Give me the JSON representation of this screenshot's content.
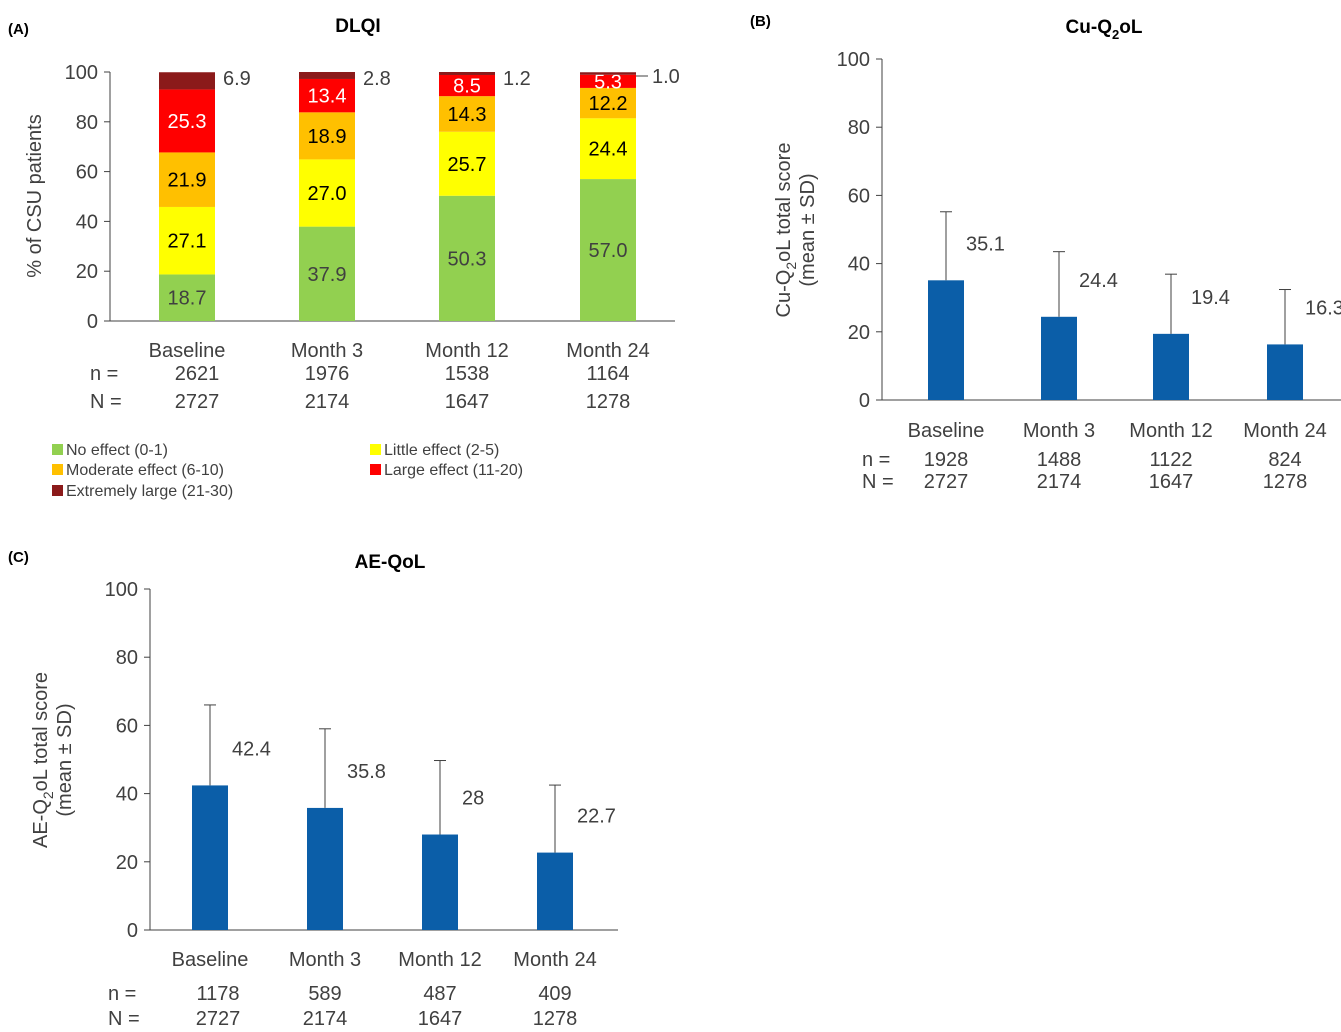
{
  "chart_data": [
    {
      "panel": "(A)",
      "type": "bar",
      "stacked": true,
      "title": "DLQI",
      "ylabel": "% of CSU patients",
      "ylim": [
        0,
        100
      ],
      "yticks": [
        0,
        20,
        40,
        60,
        80,
        100
      ],
      "categories": [
        "Baseline",
        "Month 3",
        "Month 12",
        "Month 24"
      ],
      "n_label": "n =",
      "N_label": "N =",
      "n": [
        "2621",
        "1976",
        "1538",
        "1164"
      ],
      "N": [
        "2727",
        "2174",
        "1647",
        "1278"
      ],
      "series": [
        {
          "name": "No effect (0-1)",
          "color": "#92d050",
          "label_color": "#404040",
          "values": [
            18.7,
            37.9,
            50.3,
            57.0
          ],
          "labels": [
            "18.7",
            "37.9",
            "50.3",
            "57.0"
          ]
        },
        {
          "name": "Little effect (2-5)",
          "color": "#ffff00",
          "label_color": "#000000",
          "values": [
            27.1,
            27.0,
            25.7,
            24.4
          ],
          "labels": [
            "27.1",
            "27.0",
            "25.7",
            "24.4"
          ]
        },
        {
          "name": "Moderate effect (6-10)",
          "color": "#ffc000",
          "label_color": "#000000",
          "values": [
            21.9,
            18.9,
            14.3,
            12.2
          ],
          "labels": [
            "21.9",
            "18.9",
            "14.3",
            "12.2"
          ]
        },
        {
          "name": "Large effect (11-20)",
          "color": "#ff0000",
          "label_color": "#ffffff",
          "values": [
            25.3,
            13.4,
            8.5,
            5.3
          ],
          "labels": [
            "25.3",
            "13.4",
            "8.5",
            "5.3"
          ]
        },
        {
          "name": "Extremely large (21-30)",
          "color": "#8b1a1a",
          "label_color": "#404040",
          "values": [
            6.9,
            2.8,
            1.2,
            1.0
          ],
          "labels": [
            "6.9",
            "2.8",
            "1.2",
            "1.0"
          ]
        }
      ],
      "legend_position": "bottom"
    },
    {
      "panel": "(B)",
      "type": "bar",
      "title": "Cu-Q2oL",
      "ylabel_line1": "Cu-Q2oL total score",
      "ylabel_line2": "(mean ± SD)",
      "ylim": [
        0,
        100
      ],
      "yticks": [
        0,
        20,
        40,
        60,
        80,
        100
      ],
      "categories": [
        "Baseline",
        "Month 3",
        "Month 12",
        "Month 24"
      ],
      "values": [
        35.1,
        24.4,
        19.4,
        16.3
      ],
      "labels": [
        "35.1",
        "24.4",
        "19.4",
        "16.3"
      ],
      "sd_upper": [
        55.2,
        43.5,
        36.9,
        32.4
      ],
      "bar_color": "#0b5ea8",
      "n_label": "n =",
      "N_label": "N =",
      "n": [
        "1928",
        "1488",
        "1122",
        "824"
      ],
      "N": [
        "2727",
        "2174",
        "1647",
        "1278"
      ]
    },
    {
      "panel": "(C)",
      "type": "bar",
      "title": "AE-QoL",
      "ylabel_line1": "AE-Q2oL total score",
      "ylabel_line2": "(mean ± SD)",
      "ylim": [
        0,
        100
      ],
      "yticks": [
        0,
        20,
        40,
        60,
        80,
        100
      ],
      "categories": [
        "Baseline",
        "Month 3",
        "Month 12",
        "Month 24"
      ],
      "values": [
        42.4,
        35.8,
        28,
        22.7
      ],
      "labels": [
        "42.4",
        "35.8",
        "28",
        "22.7"
      ],
      "sd_upper": [
        66.0,
        59.0,
        49.7,
        42.5
      ],
      "bar_color": "#0b5ea8",
      "n_label": "n =",
      "N_label": "N =",
      "n": [
        "1178",
        "589",
        "487",
        "409"
      ],
      "N": [
        "2727",
        "2174",
        "1647",
        "1278"
      ]
    }
  ]
}
